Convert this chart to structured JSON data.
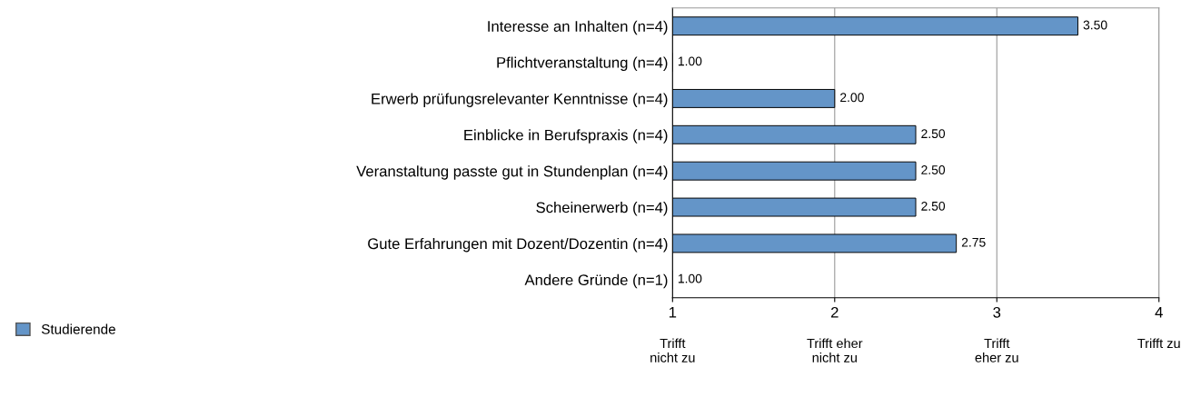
{
  "chart_data": {
    "type": "bar",
    "orientation": "horizontal",
    "categories": [
      "Interesse an Inhalten (n=4)",
      "Pflichtveranstaltung (n=4)",
      "Erwerb prüfungsrelevanter Kenntnisse (n=4)",
      "Einblicke in Berufspraxis (n=4)",
      "Veranstaltung passte gut in Stundenplan (n=4)",
      "Scheinerwerb (n=4)",
      "Gute Erfahrungen mit Dozent/Dozentin (n=4)",
      "Andere Gründe (n=1)"
    ],
    "series": [
      {
        "name": "Studierende",
        "color": "#6495c8",
        "values": [
          3.5,
          1.0,
          2.0,
          2.5,
          2.5,
          2.5,
          2.75,
          1.0
        ],
        "value_labels": [
          "3.50",
          "1.00",
          "2.00",
          "2.50",
          "2.50",
          "2.50",
          "2.75",
          "1.00"
        ]
      }
    ],
    "xlim": [
      1,
      4
    ],
    "xticks": [
      1,
      2,
      3,
      4
    ],
    "annotations": [
      "Trifft\nnicht zu",
      "Trifft eher\nnicht zu",
      "Trifft\neher zu",
      "Trifft zu"
    ],
    "grid": "x",
    "legend": "bottom left"
  }
}
